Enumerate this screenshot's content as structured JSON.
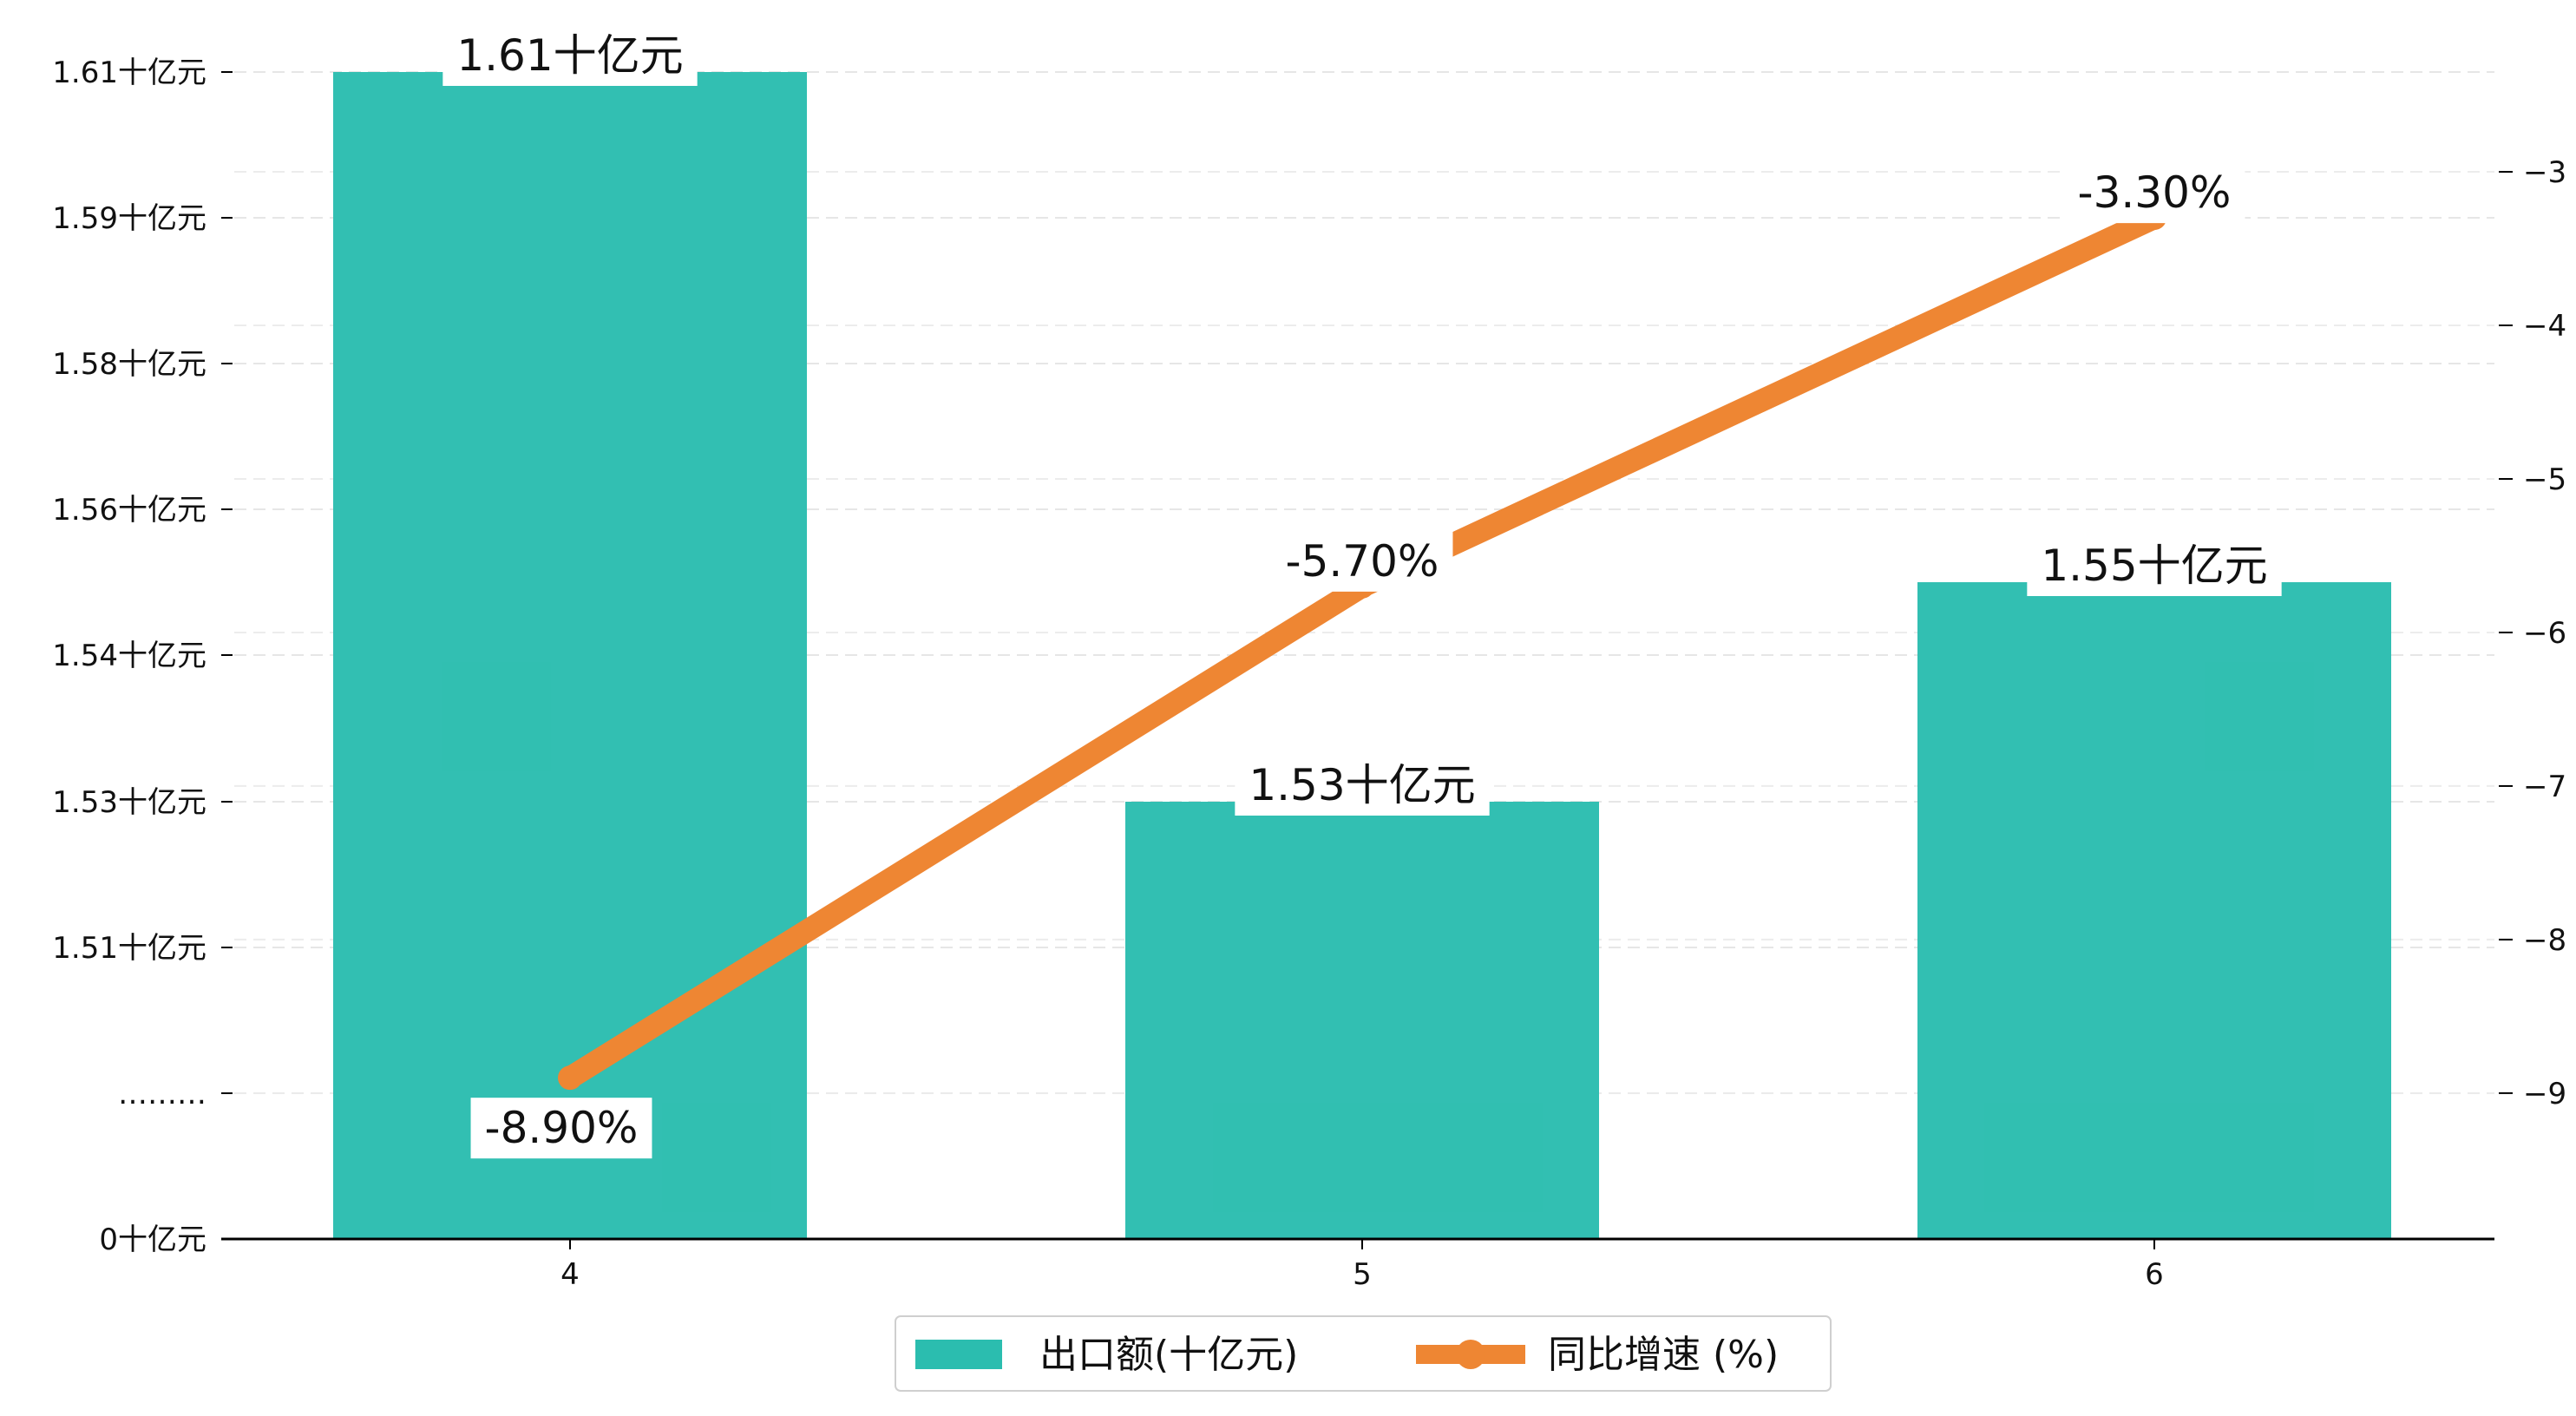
{
  "chart_data": {
    "type": "bar",
    "categories": [
      "4",
      "5",
      "6"
    ],
    "series": [
      {
        "name": "出口额(十亿元)",
        "type": "bar",
        "axis": "left",
        "values": [
          1.61,
          1.53,
          1.55
        ],
        "value_labels": [
          "1.61十亿元",
          "1.53十亿元",
          "1.55十亿元"
        ],
        "color": "#2bbdaf"
      },
      {
        "name": "同比增速 (%)",
        "type": "line",
        "axis": "right",
        "values": [
          -8.9,
          -5.7,
          -3.3
        ],
        "value_labels": [
          "-8.90%",
          "-5.70%",
          "-3.30%"
        ],
        "color": "#ee8633"
      }
    ],
    "left_axis": {
      "tick_labels": [
        "0十亿元",
        "………",
        "1.51十亿元",
        "1.53十亿元",
        "1.54十亿元",
        "1.56十亿元",
        "1.58十亿元",
        "1.59十亿元",
        "1.61十亿元"
      ],
      "broken_axis": true,
      "range": [
        1.49,
        1.61
      ]
    },
    "right_axis": {
      "ticks": [
        -3,
        -4,
        -5,
        -6,
        -7,
        -8,
        -9
      ],
      "tick_labels": [
        "−3",
        "−4",
        "−5",
        "−6",
        "−7",
        "−8",
        "−9"
      ],
      "range": [
        -9.95,
        -2.35
      ]
    },
    "grid": true,
    "legend_position": "bottom-center",
    "title": "",
    "xlabel": "",
    "ylabel": ""
  }
}
